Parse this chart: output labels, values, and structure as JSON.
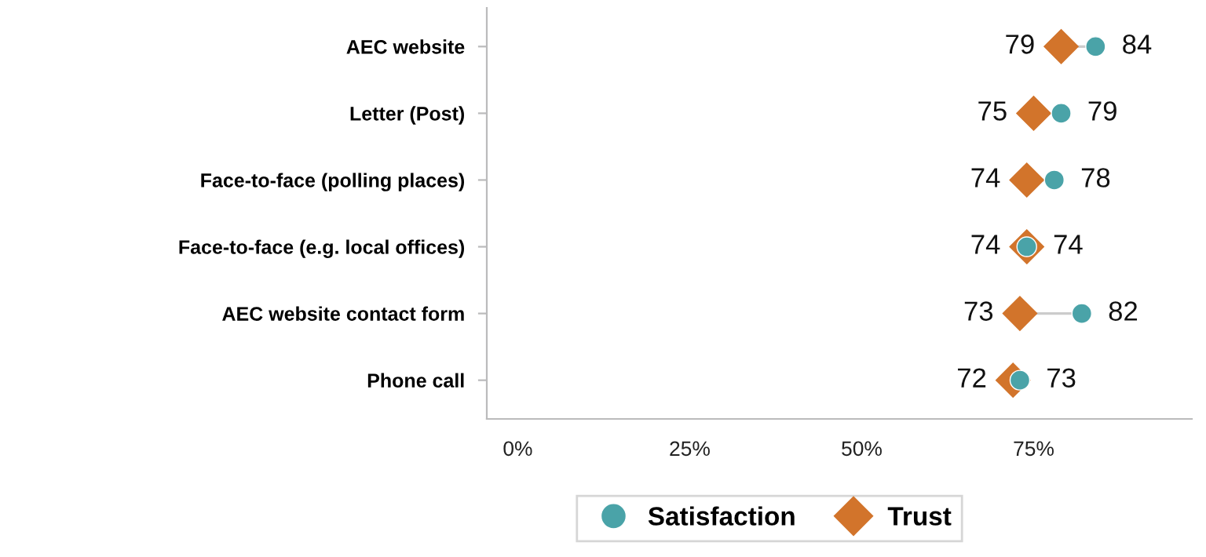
{
  "chart_data": {
    "type": "scatter",
    "orientation": "horizontal",
    "categories": [
      "AEC website",
      "Letter (Post)",
      "Face-to-face (polling places)",
      "Face-to-face (e.g. local offices)",
      "AEC website contact form",
      "Phone call"
    ],
    "series": [
      {
        "name": "Satisfaction",
        "color": "#4aa3a8",
        "marker": "circle",
        "values": [
          84,
          79,
          78,
          74,
          82,
          73
        ]
      },
      {
        "name": "Trust",
        "color": "#d2742b",
        "marker": "diamond",
        "values": [
          79,
          75,
          74,
          74,
          73,
          72
        ]
      }
    ],
    "xlim": [
      -4.5,
      98
    ],
    "xticks": [
      {
        "value": 0,
        "label": "0%"
      },
      {
        "value": 25,
        "label": "25%"
      },
      {
        "value": 50,
        "label": "50%"
      },
      {
        "value": 75,
        "label": "75%"
      }
    ],
    "data_labels": true,
    "grid": false,
    "legend": "bottom"
  }
}
